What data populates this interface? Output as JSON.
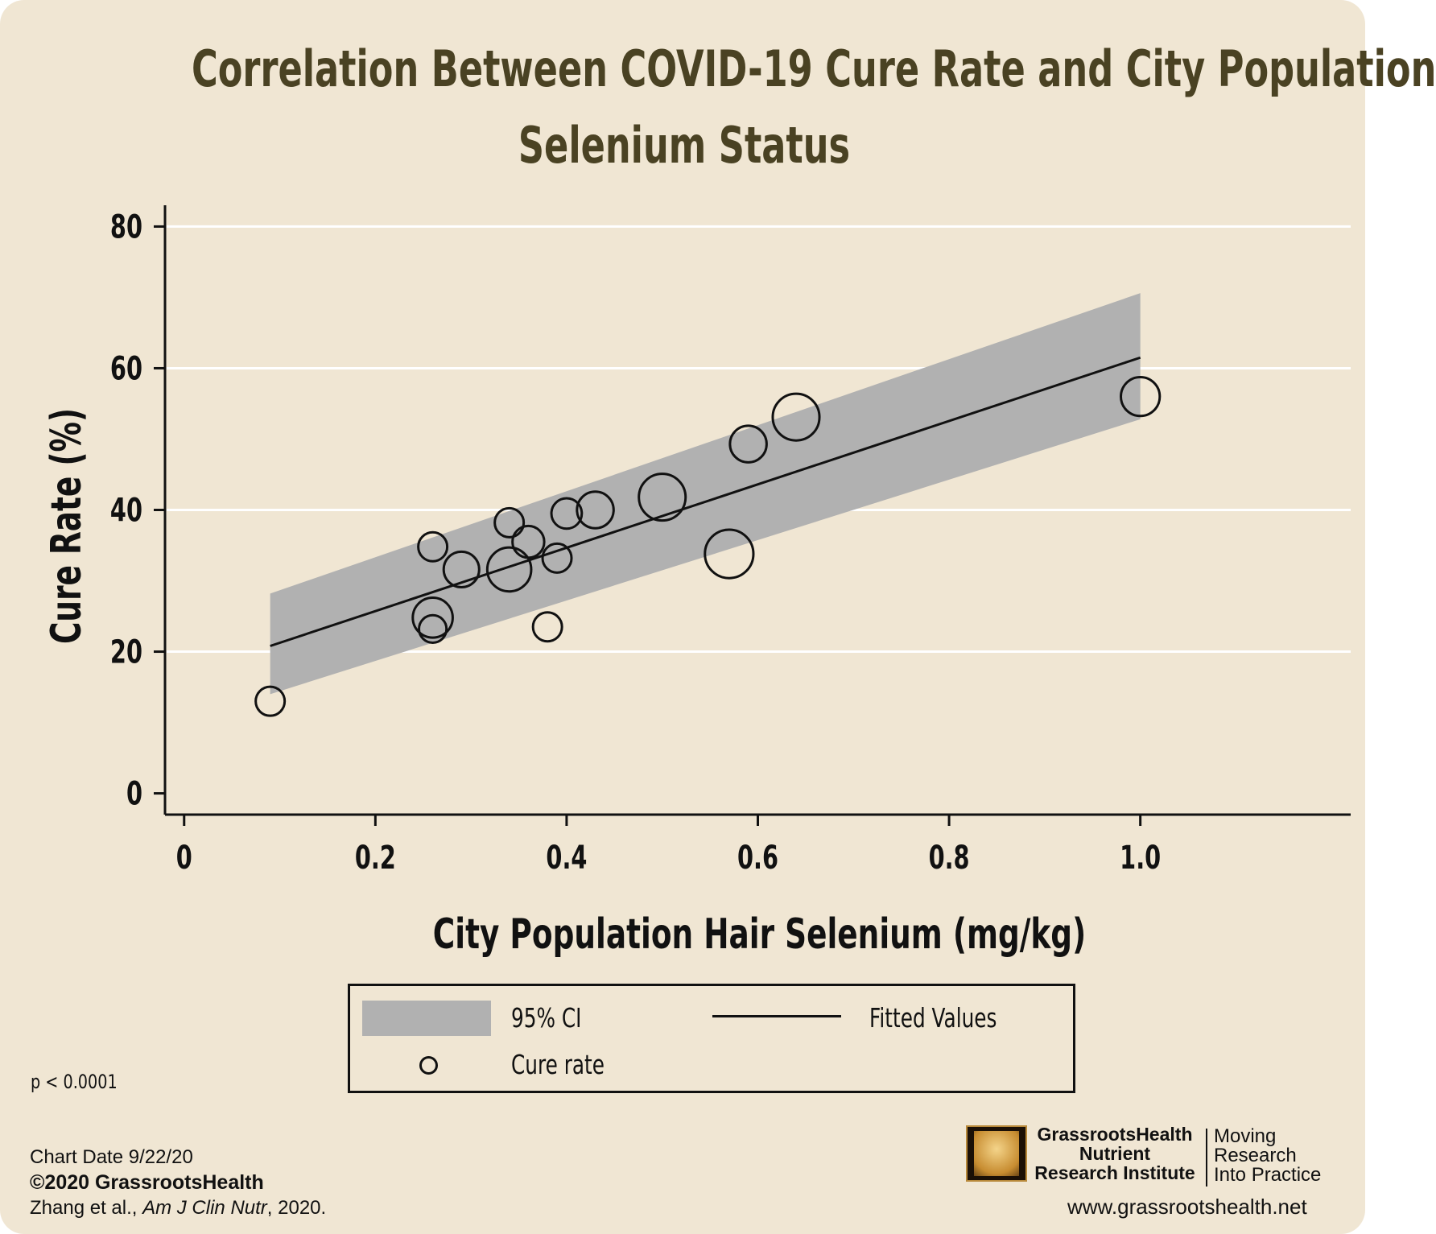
{
  "title": {
    "line1": "Correlation Between COVID-19 Cure Rate and City Population",
    "line2": "Selenium Status"
  },
  "chart_data": {
    "type": "scatter",
    "xlabel": "City Population Hair Selenium (mg/kg)",
    "ylabel": "Cure Rate (%)",
    "xlim": [
      -0.02,
      1.22
    ],
    "ylim": [
      -3,
      83
    ],
    "x_ticks": [
      0,
      0.2,
      0.4,
      0.6,
      0.8,
      1.0
    ],
    "x_tick_labels": [
      "0",
      "0.2",
      "0.4",
      "0.6",
      "0.8",
      "1.0"
    ],
    "y_ticks": [
      0,
      20,
      40,
      60,
      80
    ],
    "y_tick_labels": [
      "0",
      "20",
      "40",
      "60",
      "80"
    ],
    "grid": "horizontal",
    "marker_style": "hollow circles sized by weight",
    "points": [
      {
        "x": 0.09,
        "y": 13.0,
        "size": 1.0
      },
      {
        "x": 0.26,
        "y": 34.8,
        "size": 1.0
      },
      {
        "x": 0.26,
        "y": 23.2,
        "size": 0.9
      },
      {
        "x": 0.26,
        "y": 24.8,
        "size": 1.9
      },
      {
        "x": 0.29,
        "y": 31.6,
        "size": 1.5
      },
      {
        "x": 0.34,
        "y": 38.2,
        "size": 1.0
      },
      {
        "x": 0.34,
        "y": 31.6,
        "size": 2.3
      },
      {
        "x": 0.36,
        "y": 35.5,
        "size": 1.2
      },
      {
        "x": 0.38,
        "y": 23.5,
        "size": 1.0
      },
      {
        "x": 0.39,
        "y": 33.2,
        "size": 1.0
      },
      {
        "x": 0.4,
        "y": 39.5,
        "size": 1.1
      },
      {
        "x": 0.43,
        "y": 40.0,
        "size": 1.6
      },
      {
        "x": 0.5,
        "y": 41.8,
        "size": 2.6
      },
      {
        "x": 0.57,
        "y": 33.8,
        "size": 2.8
      },
      {
        "x": 0.59,
        "y": 49.3,
        "size": 1.6
      },
      {
        "x": 0.64,
        "y": 53.1,
        "size": 2.6
      },
      {
        "x": 1.0,
        "y": 56.0,
        "size": 1.8
      }
    ],
    "fitted_line": {
      "x": [
        0.09,
        1.0
      ],
      "y": [
        20.8,
        61.5
      ]
    },
    "ci_band": {
      "x": [
        0.09,
        1.0
      ],
      "lower": [
        14.0,
        52.8
      ],
      "upper": [
        28.2,
        70.6
      ]
    },
    "legend": {
      "position": "bottom",
      "items": [
        "95% CI",
        "Fitted Values",
        "Cure rate"
      ]
    },
    "annotations": [
      "p < 0.0001"
    ]
  },
  "colors": {
    "background": "#f0e6d3",
    "title": "#4a4223",
    "ci_band": "#b1b1b1",
    "line": "#111111",
    "gridline": "#ffffff"
  },
  "footer": {
    "chart_date": "Chart Date 9/22/20",
    "copyright": "©2020 GrassrootsHealth",
    "citation_authors": "Zhang et al., ",
    "citation_journal": "Am J Clin Nutr",
    "citation_year": ", 2020."
  },
  "branding": {
    "org_line1": "GrassrootsHealth",
    "org_line2": "Nutrient",
    "org_line3": "Research Institute",
    "tag_line1": "Moving",
    "tag_line2": "Research",
    "tag_line3": "Into Practice",
    "url": "www.grassrootshealth.net",
    "logo_icon": "vitruvian-man-icon"
  }
}
